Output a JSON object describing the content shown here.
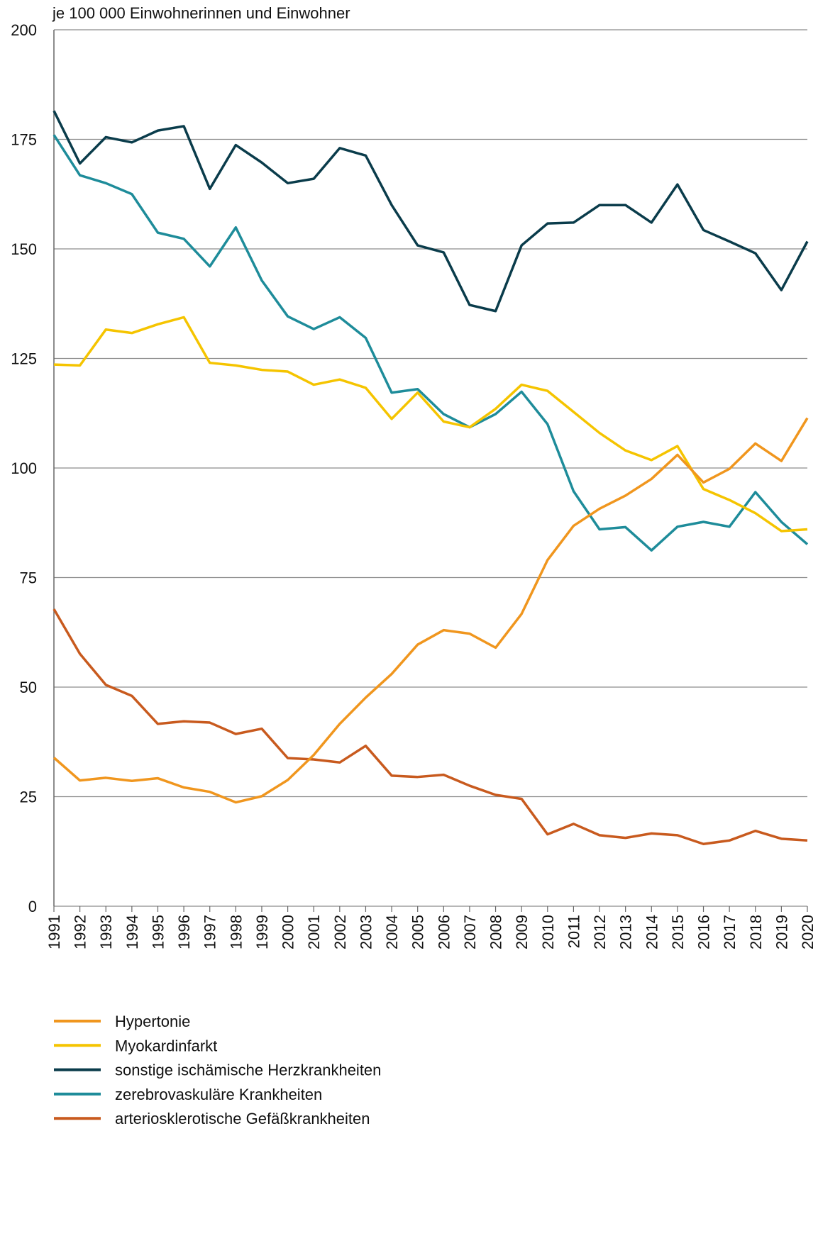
{
  "chart_data": {
    "type": "line",
    "title": "je 100 000 Einwohnerinnen und Einwohner",
    "categories": [
      "1991",
      "1992",
      "1993",
      "1994",
      "1995",
      "1996",
      "1997",
      "1998",
      "1999",
      "2000",
      "2001",
      "2002",
      "2003",
      "2004",
      "2005",
      "2006",
      "2007",
      "2008",
      "2009",
      "2010",
      "2011",
      "2012",
      "2013",
      "2014",
      "2015",
      "2016",
      "2017",
      "2018",
      "2019",
      "2020"
    ],
    "series": [
      {
        "name": "Hypertonie",
        "color": "#f0961e",
        "values": [
          33.9,
          28.7,
          29.3,
          28.6,
          29.2,
          27.1,
          26.1,
          23.7,
          25.1,
          28.8,
          34.5,
          41.6,
          47.6,
          53,
          59.7,
          63,
          62.2,
          59,
          66.7,
          79,
          86.8,
          90.7,
          93.7,
          97.5,
          103,
          96.7,
          99.8,
          105.6,
          101.6,
          111.4
        ]
      },
      {
        "name": "Myokardinfarkt",
        "color": "#f5c400",
        "values": [
          123.6,
          123.4,
          131.6,
          130.8,
          132.8,
          134.4,
          124,
          123.4,
          122.4,
          122,
          119,
          120.2,
          118.3,
          111.2,
          117.2,
          110.6,
          109.3,
          113.5,
          119,
          117.6,
          112.8,
          108,
          104,
          101.8,
          105,
          95.2,
          92.7,
          89.7,
          85.6,
          86
        ]
      },
      {
        "name": "sonstige ischämische Herzkrankheiten",
        "color": "#0a3c4b",
        "values": [
          181.5,
          169.5,
          175.5,
          174.3,
          177,
          178,
          163.7,
          173.7,
          169.7,
          165,
          166,
          173,
          171.3,
          160,
          150.8,
          149.2,
          137.2,
          135.8,
          150.8,
          155.8,
          156,
          160,
          160,
          156,
          164.7,
          154.3,
          151.7,
          149,
          140.6,
          151.7
        ]
      },
      {
        "name": "zerebrovaskuläre Krankheiten",
        "color": "#1e8c9a",
        "values": [
          176,
          166.8,
          165,
          162.5,
          153.7,
          152.3,
          146,
          154.9,
          142.8,
          134.6,
          131.7,
          134.4,
          129.7,
          117.2,
          118,
          112.3,
          109.3,
          112.3,
          117.4,
          110,
          94.7,
          86,
          86.5,
          81.2,
          86.6,
          87.7,
          86.6,
          94.5,
          87.7,
          82.6
        ]
      },
      {
        "name": "arteriosklerotische Gefäßkrankheiten",
        "color": "#c85a1e",
        "values": [
          67.8,
          57.6,
          50.5,
          48,
          41.6,
          42.2,
          41.9,
          39.3,
          40.5,
          33.8,
          33.5,
          32.8,
          36.6,
          29.8,
          29.5,
          30,
          27.5,
          25.4,
          24.5,
          16.4,
          18.8,
          16.2,
          15.6,
          16.6,
          16.2,
          14.2,
          15,
          17.2,
          15.4,
          15
        ]
      }
    ],
    "ylim": [
      0,
      200
    ],
    "yticks": [
      0,
      25,
      50,
      75,
      100,
      125,
      150,
      175,
      200
    ],
    "grid": true
  }
}
